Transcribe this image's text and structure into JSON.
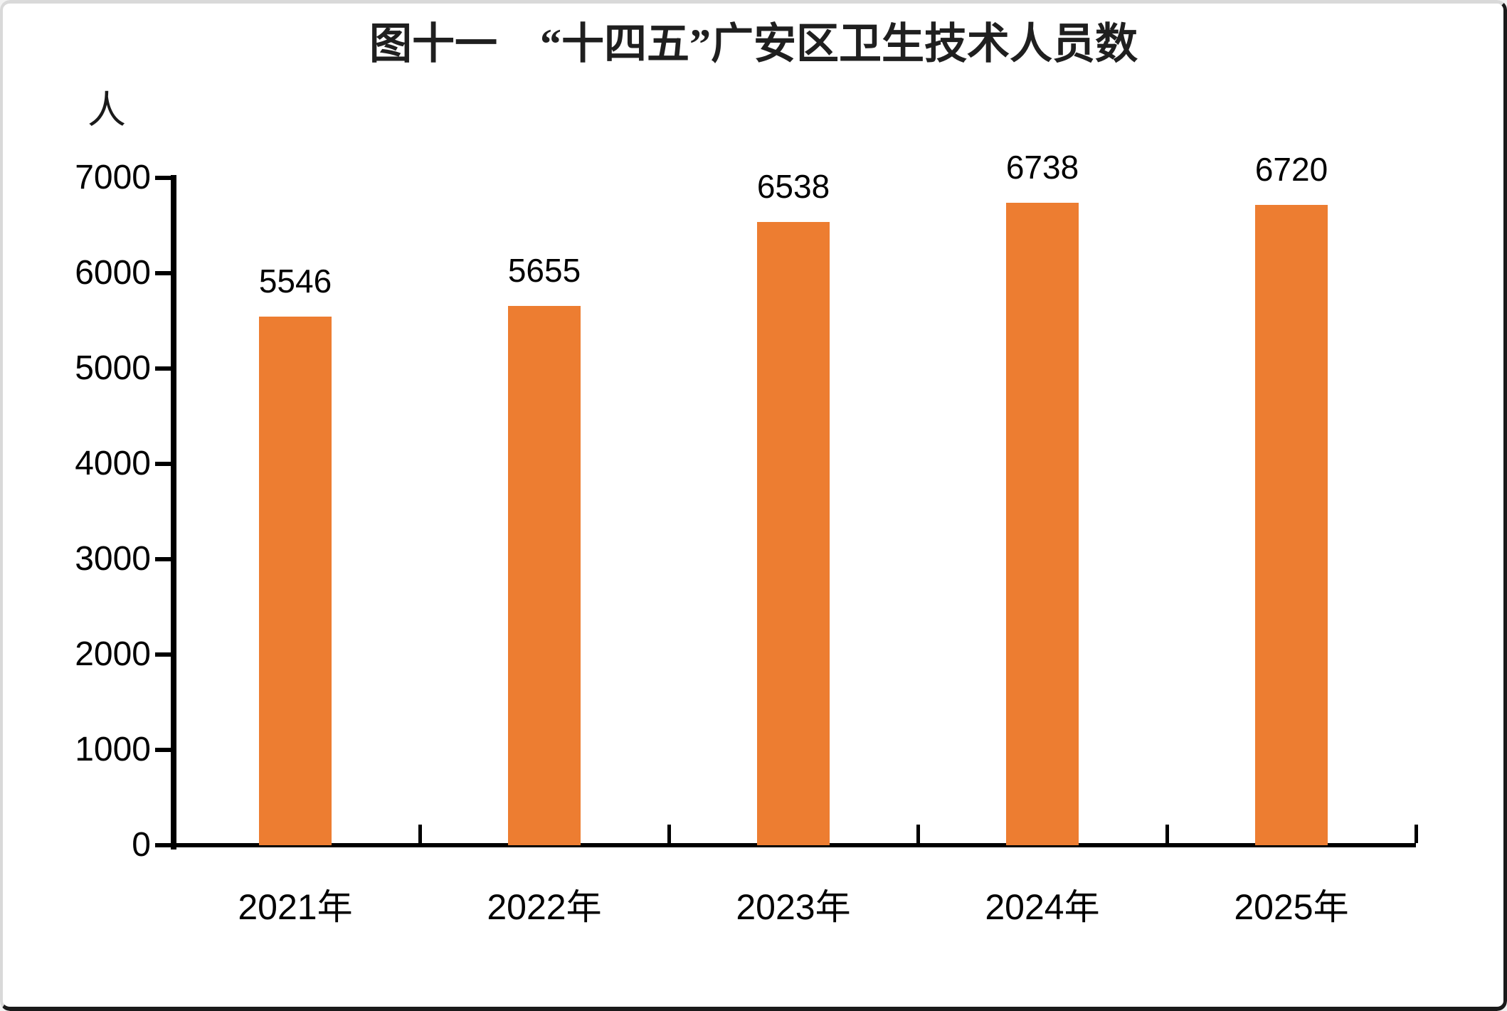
{
  "chart_data": {
    "type": "bar",
    "title": "图十一　“十四五”广安区卫生技术人员数",
    "unit_label": "人",
    "categories": [
      "2021年",
      "2022年",
      "2023年",
      "2024年",
      "2025年"
    ],
    "values": [
      5546,
      5655,
      6538,
      6738,
      6720
    ],
    "data_labels": [
      "5546",
      "5655",
      "6538",
      "6738",
      "6720"
    ],
    "ylabel": "人",
    "xlabel": "",
    "ylim": [
      0,
      7000
    ],
    "ytick_step": 1000,
    "ytick_labels": [
      "0",
      "1000",
      "2000",
      "3000",
      "4000",
      "5000",
      "6000",
      "7000"
    ],
    "bar_color": "#ED7D31",
    "axis_color": "#000000",
    "text_color": "#000000",
    "grid": false,
    "legend_position": "none"
  }
}
